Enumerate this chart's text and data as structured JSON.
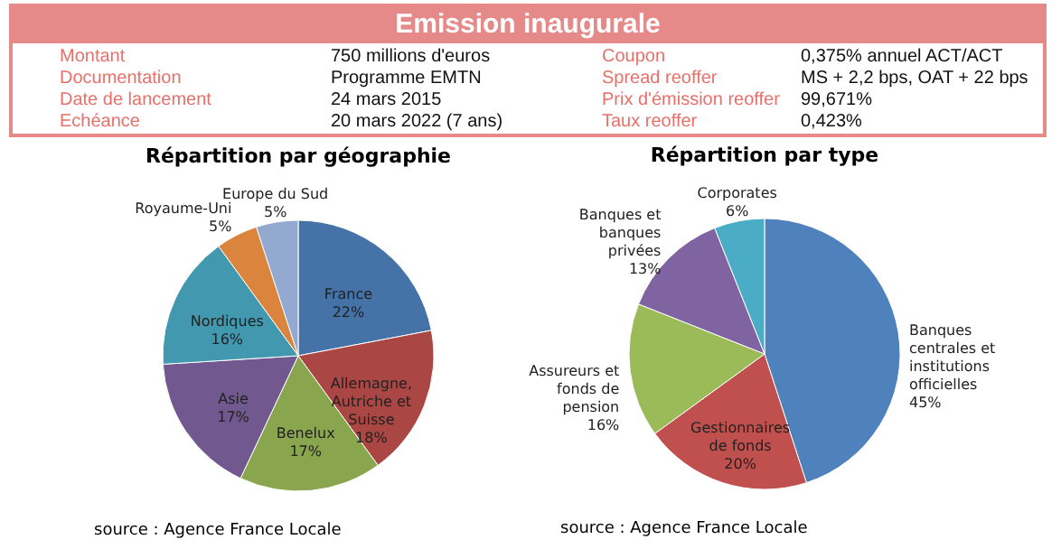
{
  "chart_data": [
    {
      "type": "other",
      "title": "Emission inaugurale",
      "annotations": [
        "Montant",
        "750 millions d'euros",
        "Coupon",
        "0,375% annuel ACT/ACT",
        "Documentation",
        "Programme EMTN",
        "Spread reoffer",
        "MS + 2,2 bps, OAT + 22 bps",
        "Date de lancement",
        "24 mars 2015",
        "Prix d'émission reoffer",
        "99,671%",
        "Echéance",
        "20 mars 2022 (7 ans)",
        "Taux reoffer",
        "0,423%"
      ]
    },
    {
      "type": "pie",
      "title": "Répartition par géographie",
      "categories": [
        "France",
        "Allemagne, Autriche et Suisse",
        "Benelux",
        "Asie",
        "Nordiques",
        "Royaume-Uni",
        "Europe du Sud"
      ],
      "values": [
        22,
        18,
        17,
        17,
        16,
        5,
        5
      ],
      "value_labels": [
        "22%",
        "18%",
        "17%",
        "17%",
        "16%",
        "5%",
        "5%"
      ],
      "colors": [
        "#4572a7",
        "#aa4643",
        "#89a54e",
        "#71588f",
        "#4198af",
        "#db843d",
        "#93a9cf"
      ],
      "annotations": [
        "source : Agence France Locale"
      ]
    },
    {
      "type": "pie",
      "title": "Répartition par type",
      "categories": [
        "Banques centrales et institutions officielles",
        "Gestionnaires de fonds",
        "Assureurs et fonds de pension",
        "Banques et banques privées",
        "Corporates"
      ],
      "values": [
        45,
        20,
        16,
        13,
        6
      ],
      "value_labels": [
        "45%",
        "20%",
        "16%",
        "13%",
        "6%"
      ],
      "colors": [
        "#4f81bd",
        "#c0504d",
        "#9bbb59",
        "#8064a2",
        "#4bacc6"
      ],
      "annotations": [
        "source : Agence France Locale"
      ]
    }
  ]
}
